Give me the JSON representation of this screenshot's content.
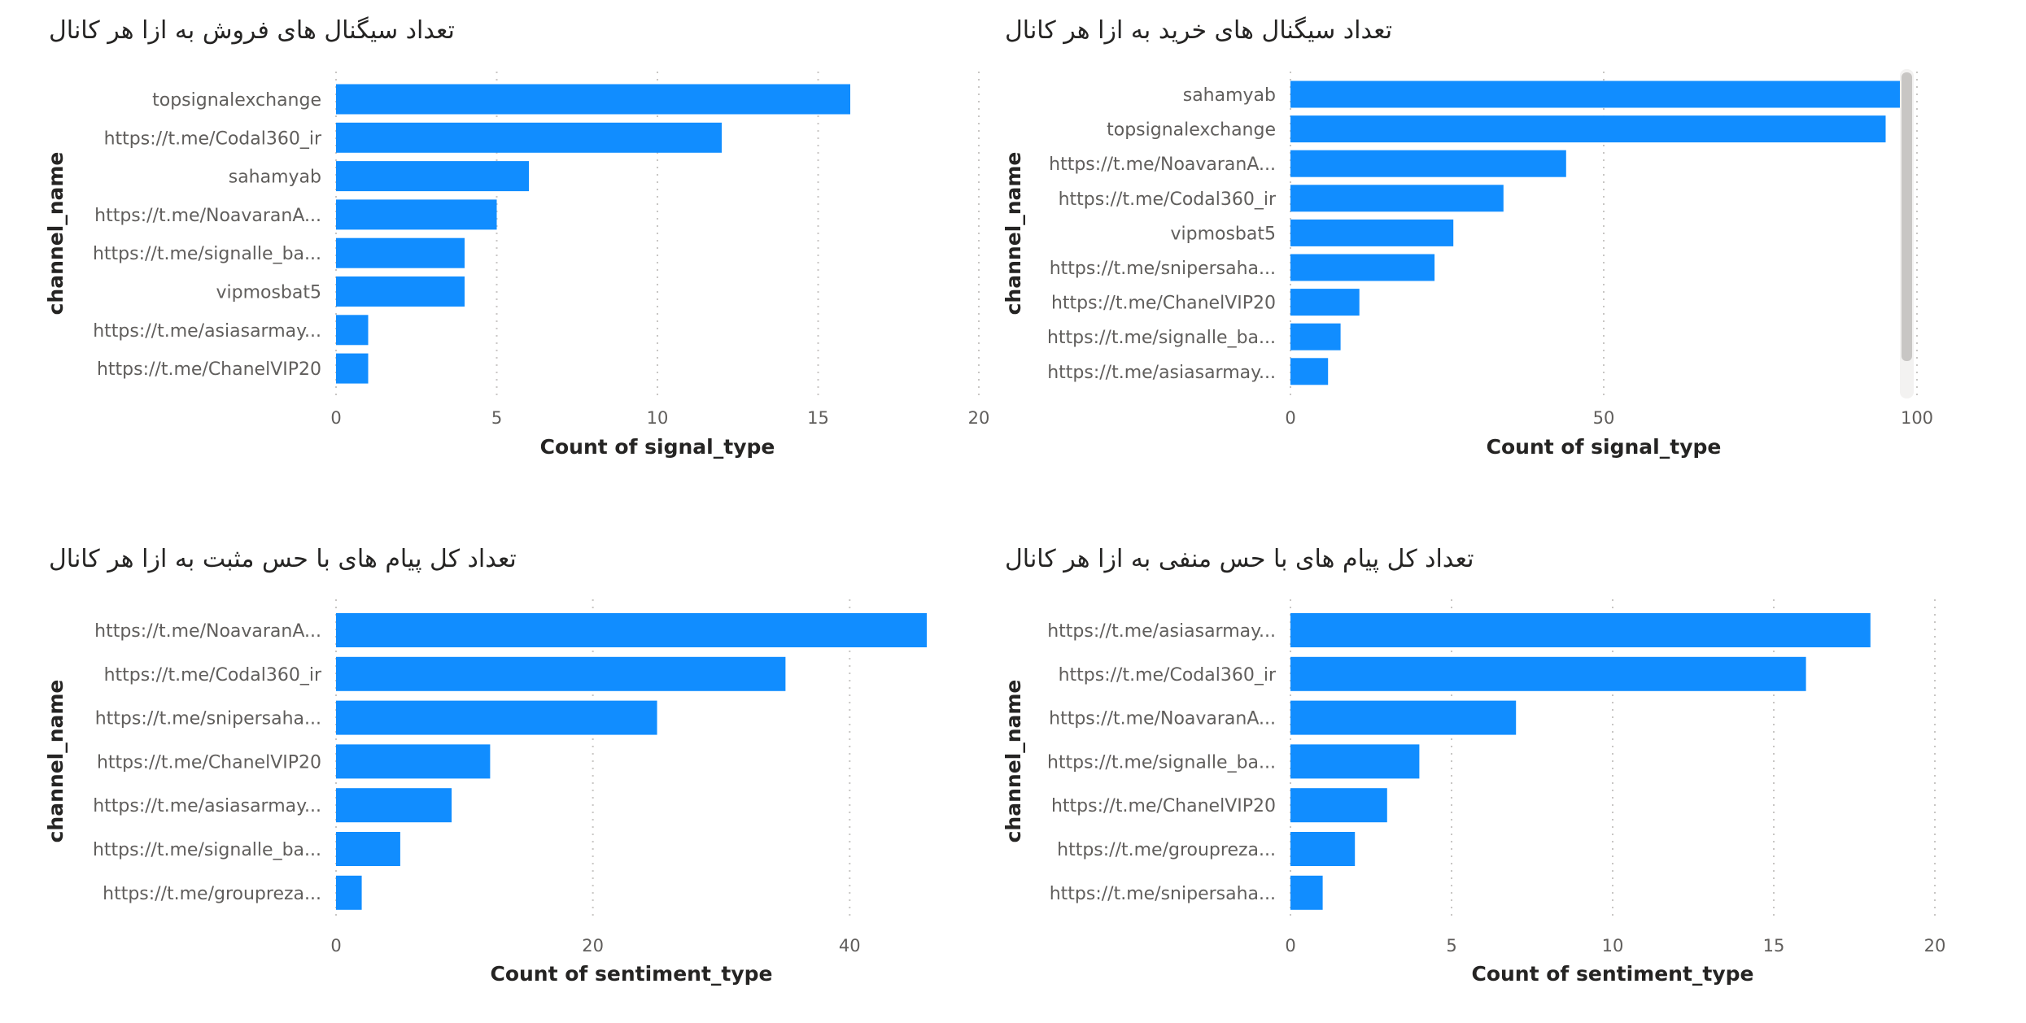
{
  "colors": {
    "bar": "#118dff",
    "grid": "#c8c6c4",
    "text": "#605e5c",
    "title": "#252423"
  },
  "chart_data": [
    {
      "type": "bar",
      "orientation": "horizontal",
      "title": "تعداد سیگنال های فروش به ازا هر کانال",
      "xlabel": "Count of signal_type",
      "ylabel": "channel_name",
      "xlim": [
        0,
        20
      ],
      "xticks": [
        0,
        5,
        10,
        15,
        20
      ],
      "grid": true,
      "categories": [
        "topsignalexchange",
        "https://t.me/Codal360_ir",
        "sahamyab",
        "https://t.me/NoavaranA...",
        "https://t.me/signalle_ba...",
        "vipmosbat5",
        "https://t.me/asiasarmay...",
        "https://t.me/ChanelVIP20"
      ],
      "values": [
        16,
        12,
        6,
        5,
        4,
        4,
        1,
        1
      ]
    },
    {
      "type": "bar",
      "orientation": "horizontal",
      "title": "تعداد سیگنال های خرید به ازا هر کانال",
      "xlabel": "Count of signal_type",
      "ylabel": "channel_name",
      "xlim": [
        0,
        100
      ],
      "xticks": [
        0,
        50,
        100
      ],
      "grid": true,
      "scrollbar": true,
      "categories": [
        "sahamyab",
        "topsignalexchange",
        "https://t.me/NoavaranA...",
        "https://t.me/Codal360_ir",
        "vipmosbat5",
        "https://t.me/snipersaha...",
        "https://t.me/ChanelVIP20",
        "https://t.me/signalle_ba...",
        "https://t.me/asiasarmay..."
      ],
      "values": [
        98,
        95,
        44,
        34,
        26,
        23,
        11,
        8,
        6
      ]
    },
    {
      "type": "bar",
      "orientation": "horizontal",
      "title": "تعداد کل پیام های با حس مثبت به ازا هر کانال",
      "xlabel": "Count of sentiment_type",
      "ylabel": "channel_name",
      "xlim": [
        0,
        46
      ],
      "xticks": [
        0,
        20,
        40
      ],
      "grid": true,
      "categories": [
        "https://t.me/NoavaranA...",
        "https://t.me/Codal360_ir",
        "https://t.me/snipersaha...",
        "https://t.me/ChanelVIP20",
        "https://t.me/asiasarmay...",
        "https://t.me/signalle_ba...",
        "https://t.me/groupreza..."
      ],
      "values": [
        46,
        35,
        25,
        12,
        9,
        5,
        2
      ]
    },
    {
      "type": "bar",
      "orientation": "horizontal",
      "title": "تعداد کل پیام های با حس منفی به ازا هر کانال",
      "xlabel": "Count of sentiment_type",
      "ylabel": "channel_name",
      "xlim": [
        0,
        20
      ],
      "xticks": [
        0,
        5,
        10,
        15,
        20
      ],
      "grid": true,
      "categories": [
        "https://t.me/asiasarmay...",
        "https://t.me/Codal360_ir",
        "https://t.me/NoavaranA...",
        "https://t.me/signalle_ba...",
        "https://t.me/ChanelVIP20",
        "https://t.me/groupreza...",
        "https://t.me/snipersaha..."
      ],
      "values": [
        18,
        16,
        7,
        4,
        3,
        2,
        1
      ]
    }
  ]
}
